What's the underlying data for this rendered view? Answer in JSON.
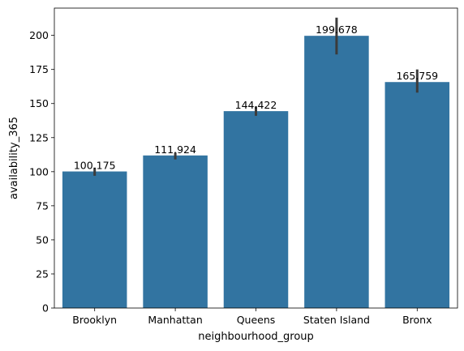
{
  "chart_data": {
    "type": "bar",
    "title": "",
    "xlabel": "neighbourhood_group",
    "ylabel": "availability_365",
    "categories": [
      "Brooklyn",
      "Manhattan",
      "Queens",
      "Staten Island",
      "Bronx"
    ],
    "values": [
      100.175,
      111.924,
      144.422,
      199.678,
      165.759
    ],
    "value_labels": [
      "100.175",
      "111.924",
      "144.422",
      "199.678",
      "165.759"
    ],
    "error_bars": [
      [
        97,
        103
      ],
      [
        109,
        114
      ],
      [
        141,
        148
      ],
      [
        186,
        213
      ],
      [
        158,
        175
      ]
    ],
    "ylim": [
      0,
      220
    ],
    "yticks": [
      0,
      25,
      50,
      75,
      100,
      125,
      150,
      175,
      200
    ],
    "ytick_labels": [
      "0",
      "25",
      "50",
      "75",
      "100",
      "125",
      "150",
      "175",
      "200"
    ],
    "grid": false,
    "bar_color": "#3274a1",
    "error_color": "#3b3b3b"
  }
}
